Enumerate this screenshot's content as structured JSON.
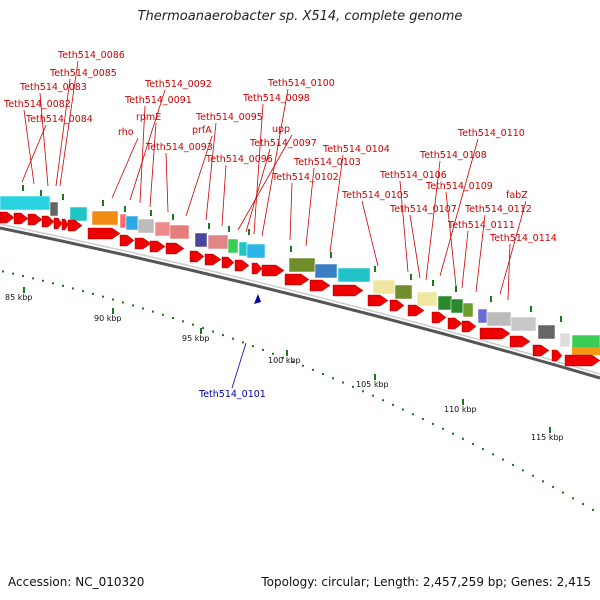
{
  "title": "Thermoanaerobacter sp. X514, complete genome",
  "footer": {
    "accession": "Accession: NC_010320",
    "summary": "Topology: circular; Length: 2,457,259 bp; Genes: 2,415"
  },
  "colors": {
    "label_red": "#cc0000",
    "label_blue": "#0000aa",
    "arrow_red": "#ee0000",
    "backbone": "#555555",
    "tick_green": "#1a7a1a"
  },
  "axis": {
    "unit": "kbp",
    "ticks": [
      "85 kbp",
      "90 kbp",
      "95 kbp",
      "100 kbp",
      "105 kbp",
      "110 kbp",
      "115 kbp"
    ]
  },
  "genes": [
    "Teth514_0086",
    "Teth514_0085",
    "Teth514_0083",
    "Teth514_0082",
    "Teth514_0084",
    "Teth514_0092",
    "Teth514_0091",
    "rho",
    "rpmE",
    "Teth514_0093",
    "prfA",
    "Teth514_0095",
    "Teth514_0100",
    "Teth514_0098",
    "upp",
    "Teth514_0097",
    "Teth514_0096",
    "Teth514_0104",
    "Teth514_0103",
    "Teth514_0102",
    "Teth514_0110",
    "Teth514_0108",
    "Teth514_0106",
    "Teth514_0105",
    "Teth514_0109",
    "Teth514_0107",
    "fabZ",
    "Teth514_0112",
    "Teth514_0111",
    "Teth514_0114"
  ],
  "highlight_gene": "Teth514_0101"
}
